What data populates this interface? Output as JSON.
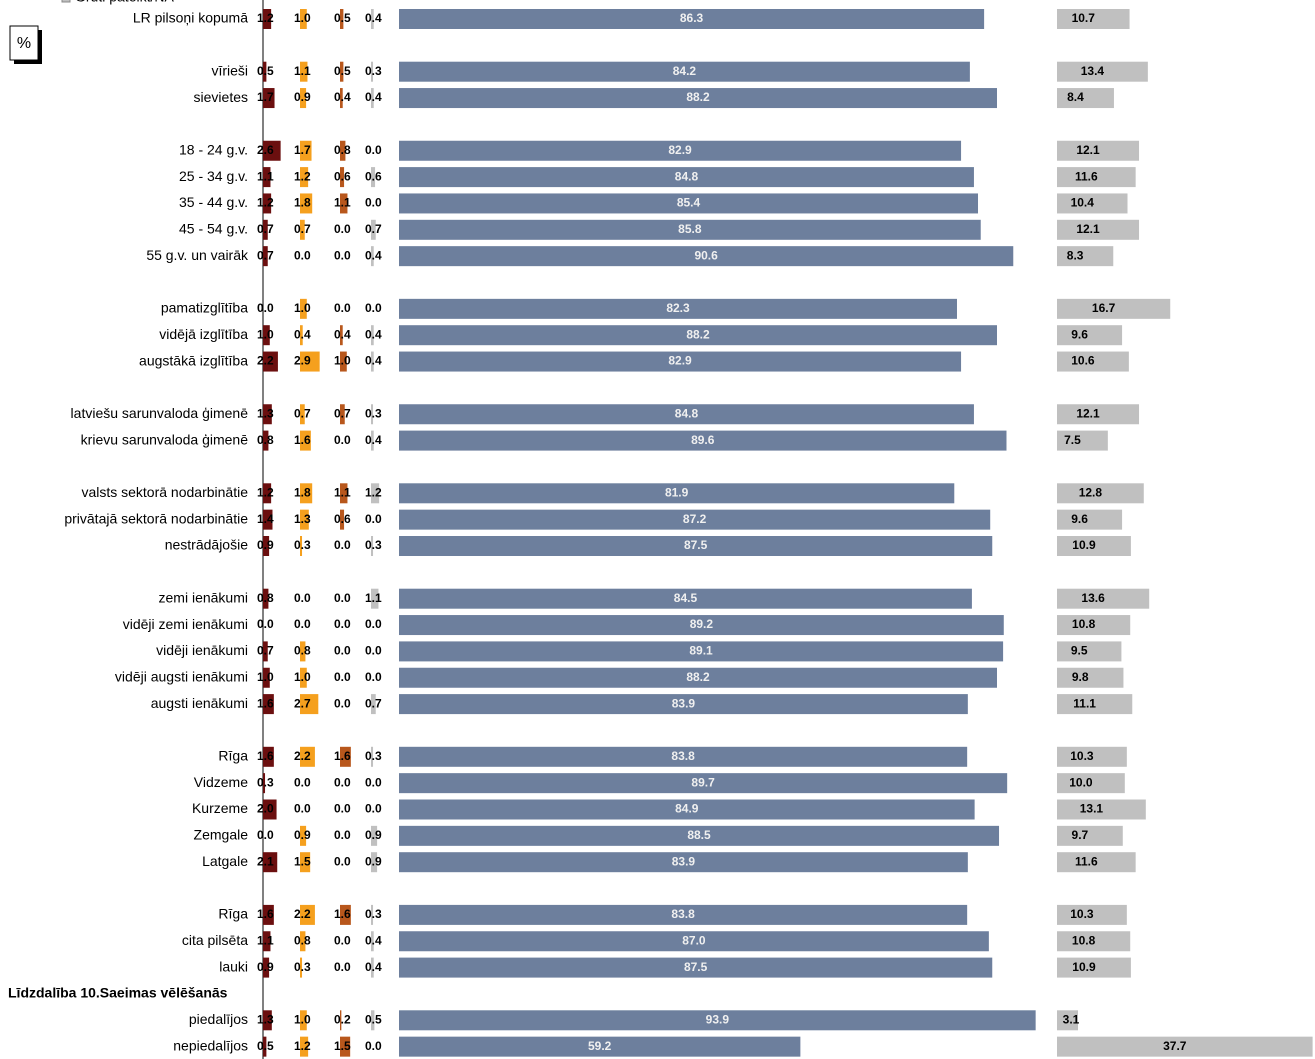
{
  "chart_data": {
    "type": "bar",
    "unit_label": "%",
    "section_title": "Līdzdalība 10.Saeimas vēlēšanās",
    "categories": [
      "LR pilsoņi kopumā",
      null,
      "vīrieši",
      "sievietes",
      null,
      "18 - 24 g.v.",
      "25 - 34 g.v.",
      "35 - 44 g.v.",
      "45 - 54 g.v.",
      "55 g.v. un vairāk",
      null,
      "pamatizglītība",
      "vidējā izglītība",
      "augstākā izglītība",
      null,
      "latviešu sarunvaloda ģimenē",
      "krievu sarunvaloda ģimenē",
      null,
      "valsts sektorā nodarbinātie",
      "privātajā sektorā nodarbinātie",
      "nestrādājošie",
      null,
      "zemi ienākumi",
      "vidēji zemi ienākumi",
      "vidēji ienākumi",
      "vidēji augsti ienākumi",
      "augsti ienākumi",
      null,
      "Rīga",
      "Vidzeme",
      "Kurzeme",
      "Zemgale",
      "Latgale",
      null,
      "Rīga",
      "cita pilsēta",
      "lauki",
      null,
      "piedalījos",
      "nepiedalījos"
    ],
    "series": [
      {
        "color": "#6b0f0f",
        "values": [
          1.2,
          null,
          0.5,
          1.7,
          null,
          2.6,
          1.1,
          1.2,
          0.7,
          0.7,
          null,
          0,
          1,
          2.2,
          null,
          1.3,
          0.8,
          null,
          1.2,
          1.4,
          0.9,
          null,
          0.8,
          0,
          0.7,
          1,
          1.6,
          null,
          1.6,
          0.3,
          2,
          0,
          2.1,
          null,
          1.6,
          1.1,
          0.9,
          null,
          1.3,
          0.5
        ],
        "value_labels": [
          "1.2",
          null,
          "0.5",
          "1.7",
          null,
          "2.6",
          "1.1",
          "1.2",
          "0.7",
          "0.7",
          null,
          "0.0",
          "1.0",
          "2.2",
          null,
          "1.3",
          "0.8",
          null,
          "1.2",
          "1.4",
          "0.9",
          null,
          "0.8",
          "0.0",
          "0.7",
          "1.0",
          "1.6",
          null,
          "1.6",
          "0.3",
          "2.0",
          "0.0",
          "2.1",
          null,
          "1.6",
          "1.1",
          "0.9",
          null,
          "1.3",
          "0.5"
        ]
      },
      {
        "color": "#f5a01e",
        "values": [
          1,
          null,
          1.1,
          0.9,
          null,
          1.7,
          1.2,
          1.8,
          0.7,
          0,
          null,
          1,
          0.4,
          2.9,
          null,
          0.7,
          1.6,
          null,
          1.8,
          1.3,
          0.3,
          null,
          0,
          0,
          0.8,
          1,
          2.7,
          null,
          2.2,
          0,
          0,
          0.9,
          1.5,
          null,
          2.2,
          0.8,
          0.3,
          null,
          1,
          1.2
        ],
        "value_labels": [
          "1.0",
          null,
          "1.1",
          "0.9",
          null,
          "1.7",
          "1.2",
          "1.8",
          "0.7",
          "0.0",
          null,
          "1.0",
          "0.4",
          "2.9",
          null,
          "0.7",
          "1.6",
          null,
          "1.8",
          "1.3",
          "0.3",
          null,
          "0.0",
          "0.0",
          "0.8",
          "1.0",
          "2.7",
          null,
          "2.2",
          "0.0",
          "0.0",
          "0.9",
          "1.5",
          null,
          "2.2",
          "0.8",
          "0.3",
          null,
          "1.0",
          "1.2"
        ]
      },
      {
        "color": "#b8571c",
        "values": [
          0.5,
          null,
          0.5,
          0.4,
          null,
          0.8,
          0.6,
          1.1,
          0,
          0,
          null,
          0,
          0.4,
          1,
          null,
          0.7,
          0,
          null,
          1.1,
          0.6,
          0,
          null,
          0,
          0,
          0,
          0,
          0,
          null,
          1.6,
          0,
          0,
          0,
          0,
          null,
          1.6,
          0,
          0,
          null,
          0.2,
          1.5
        ],
        "value_labels": [
          "0.5",
          null,
          "0.5",
          "0.4",
          null,
          "0.8",
          "0.6",
          "1.1",
          "0.0",
          "0.0",
          null,
          "0.0",
          "0.4",
          "1.0",
          null,
          "0.7",
          "0.0",
          null,
          "1.1",
          "0.6",
          "0.0",
          null,
          "0.0",
          "0.0",
          "0.0",
          "0.0",
          "0.0",
          null,
          "1.6",
          "0.0",
          "0.0",
          "0.0",
          "0.0",
          null,
          "1.6",
          "0.0",
          "0.0",
          null,
          "0.2",
          "1.5"
        ]
      },
      {
        "color": "#c0c0c0",
        "values": [
          0.4,
          null,
          0.3,
          0.4,
          null,
          0,
          0.6,
          0,
          0.7,
          0.4,
          null,
          0,
          0.4,
          0.4,
          null,
          0.3,
          0.4,
          null,
          1.2,
          0,
          0.3,
          null,
          1.1,
          0,
          0,
          0,
          0.7,
          null,
          0.3,
          0,
          0,
          0.9,
          0.9,
          null,
          0.3,
          0.4,
          0.4,
          null,
          0.5,
          0
        ],
        "value_labels": [
          "0.4",
          null,
          "0.3",
          "0.4",
          null,
          "0.0",
          "0.6",
          "0.0",
          "0.7",
          "0.4",
          null,
          "0.0",
          "0.4",
          "0.4",
          null,
          "0.3",
          "0.4",
          null,
          "1.2",
          "0.0",
          "0.3",
          null,
          "1.1",
          "0.0",
          "0.0",
          "0.0",
          "0.7",
          null,
          "0.3",
          "0.0",
          "0.0",
          "0.9",
          "0.9",
          null,
          "0.3",
          "0.4",
          "0.4",
          null,
          "0.5",
          "0.0"
        ]
      },
      {
        "color": "#6d7f9d",
        "values": [
          86.3,
          null,
          84.2,
          88.2,
          null,
          82.9,
          84.8,
          85.4,
          85.8,
          90.6,
          null,
          82.3,
          88.2,
          82.9,
          null,
          84.8,
          89.6,
          null,
          81.9,
          87.2,
          87.5,
          null,
          84.5,
          89.2,
          89.1,
          88.2,
          83.9,
          null,
          83.8,
          89.7,
          84.9,
          88.5,
          83.9,
          null,
          83.8,
          87,
          87.5,
          null,
          93.9,
          59.2
        ],
        "value_labels": [
          "86.3",
          null,
          "84.2",
          "88.2",
          null,
          "82.9",
          "84.8",
          "85.4",
          "85.8",
          "90.6",
          null,
          "82.3",
          "88.2",
          "82.9",
          null,
          "84.8",
          "89.6",
          null,
          "81.9",
          "87.2",
          "87.5",
          null,
          "84.5",
          "89.2",
          "89.1",
          "88.2",
          "83.9",
          null,
          "83.8",
          "89.7",
          "84.9",
          "88.5",
          "83.9",
          null,
          "83.8",
          "87.0",
          "87.5",
          null,
          "93.9",
          "59.2"
        ]
      },
      {
        "name": "Grūti pateikt/NA",
        "color": "#c0c0c0",
        "values": [
          10.7,
          null,
          13.4,
          8.4,
          null,
          12.1,
          11.6,
          10.4,
          12.1,
          8.3,
          null,
          16.7,
          9.6,
          10.6,
          null,
          12.1,
          7.5,
          null,
          12.8,
          9.6,
          10.9,
          null,
          13.6,
          10.8,
          9.5,
          9.8,
          11.1,
          null,
          10.3,
          10,
          13.1,
          9.7,
          11.6,
          null,
          10.3,
          10.8,
          10.9,
          null,
          3.1,
          37.7
        ],
        "value_labels": [
          "10.7",
          null,
          "13.4",
          "8.4",
          null,
          "12.1",
          "11.6",
          "10.4",
          "12.1",
          "8.3",
          null,
          "16.7",
          "9.6",
          "10.6",
          null,
          "12.1",
          "7.5",
          null,
          "12.8",
          "9.6",
          "10.9",
          null,
          "13.6",
          "10.8",
          "9.5",
          "9.8",
          "11.1",
          null,
          "10.3",
          "10.0",
          "13.1",
          "9.7",
          "11.6",
          null,
          "10.3",
          "10.8",
          "10.9",
          null,
          "3.1",
          "37.7"
        ]
      }
    ]
  }
}
